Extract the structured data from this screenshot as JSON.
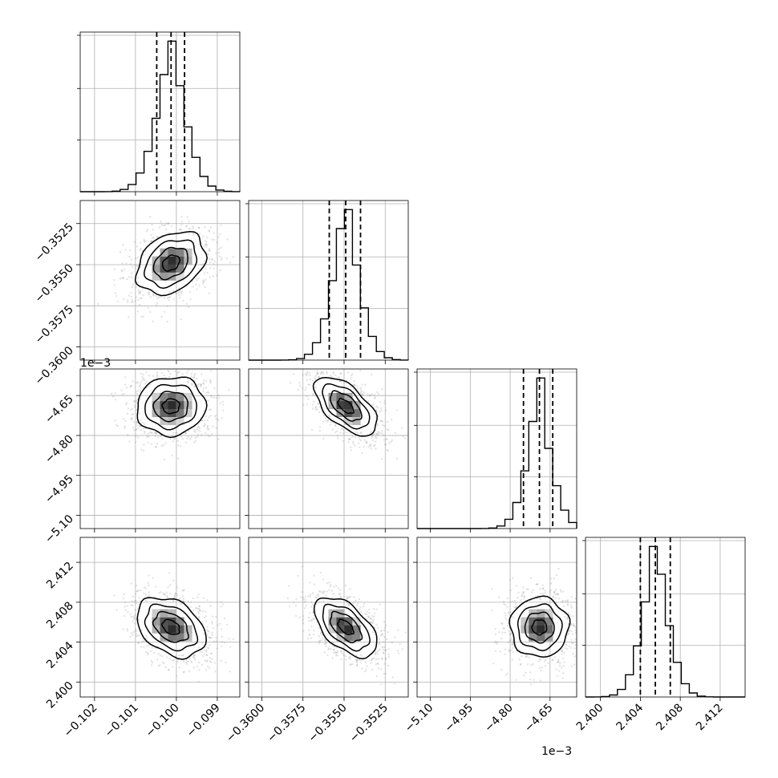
{
  "chart_data": {
    "type": "corner",
    "parameters": [
      {
        "index": 0,
        "range": [
          -0.10235,
          -0.09845
        ],
        "ticks": [
          -0.102,
          -0.101,
          -0.1,
          -0.099
        ],
        "tick_labels": [
          "−0.102",
          "−0.101",
          "−0.100",
          "−0.099"
        ],
        "mean": -0.10013,
        "sd": 0.00042,
        "quantiles": [
          -0.10048,
          -0.10013,
          -0.0998
        ]
      },
      {
        "index": 1,
        "range": [
          -0.3608,
          -0.3511
        ],
        "ticks": [
          -0.36,
          -0.3575,
          -0.355,
          -0.3525
        ],
        "tick_labels": [
          "−0.3600",
          "−0.3575",
          "−0.3550",
          "−0.3525"
        ],
        "mean": -0.3549,
        "sd": 0.00095,
        "quantiles": [
          -0.3559,
          -0.3549,
          -0.354
        ]
      },
      {
        "index": 2,
        "range": [
          -5.15,
          -4.55
        ],
        "ticks": [
          -5.1,
          -4.95,
          -4.8,
          -4.65
        ],
        "tick_labels": [
          "−5.10",
          "−4.95",
          "−4.80",
          "−4.65"
        ],
        "offset_label": "1e−3",
        "mean": -4.69,
        "sd": 0.055,
        "quantiles": [
          -4.75,
          -4.69,
          -4.64
        ]
      },
      {
        "index": 3,
        "range": [
          2.3985,
          2.4145
        ],
        "ticks": [
          2.4,
          2.404,
          2.408,
          2.412
        ],
        "tick_labels": [
          "2.400",
          "2.404",
          "2.408",
          "2.412"
        ],
        "mean": 2.4055,
        "sd": 0.0015,
        "quantiles": [
          2.404,
          2.4055,
          2.407
        ]
      }
    ],
    "correlations": [
      {
        "pair": [
          1,
          0
        ],
        "rho": 0.3
      },
      {
        "pair": [
          2,
          0
        ],
        "rho": 0.05
      },
      {
        "pair": [
          2,
          1
        ],
        "rho": -0.6
      },
      {
        "pair": [
          3,
          0
        ],
        "rho": -0.35
      },
      {
        "pair": [
          3,
          1
        ],
        "rho": -0.55
      },
      {
        "pair": [
          3,
          2
        ],
        "rho": 0.0
      }
    ],
    "histogram_bins": 20,
    "contour_levels_sigma": [
      0.5,
      1.0,
      1.5,
      2.0
    ],
    "grid": true,
    "colors": {
      "line": "#000000",
      "samples": "#7f7f7f",
      "grid": "#b0b0b0"
    }
  }
}
